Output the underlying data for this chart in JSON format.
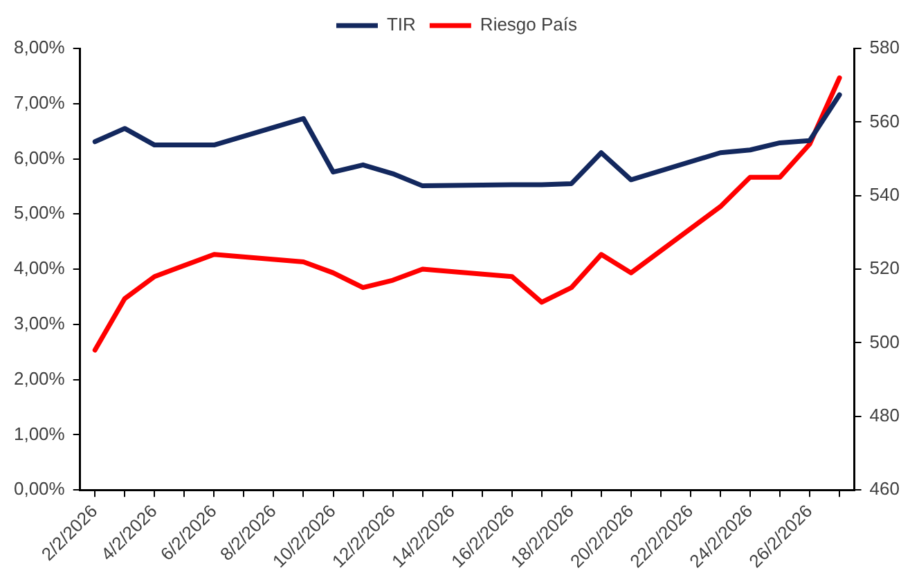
{
  "chart_data": {
    "type": "line",
    "x": [
      "2026-02-02",
      "2026-02-03",
      "2026-02-04",
      "2026-02-06",
      "2026-02-09",
      "2026-02-10",
      "2026-02-11",
      "2026-02-12",
      "2026-02-13",
      "2026-02-16",
      "2026-02-17",
      "2026-02-18",
      "2026-02-19",
      "2026-02-20",
      "2026-02-23",
      "2026-02-24",
      "2026-02-25",
      "2026-02-26",
      "2026-02-27"
    ],
    "series": [
      {
        "name": "TIR",
        "color": "#13285e",
        "values": [
          6.31,
          6.55,
          6.25,
          6.25,
          6.73,
          5.76,
          5.89,
          5.73,
          5.51,
          5.53,
          5.53,
          5.55,
          6.11,
          5.62,
          6.11,
          6.16,
          6.29,
          6.33,
          7.16
        ]
      },
      {
        "name": "Riesgo País",
        "color": "#ff0000",
        "axis": "y2",
        "values": [
          498,
          512,
          518,
          524,
          522,
          519,
          515,
          517,
          520,
          518,
          511,
          515,
          524,
          519,
          537,
          545,
          545,
          554,
          572
        ]
      }
    ],
    "xlim": [
      "2026-02-01T12:00",
      "2026-02-27T12:00"
    ],
    "xticks": [
      {
        "value": "2026-02-02",
        "label": "2/2/2026"
      },
      {
        "value": "2026-02-03",
        "label": null
      },
      {
        "value": "2026-02-04",
        "label": "4/2/2026"
      },
      {
        "value": "2026-02-05",
        "label": null
      },
      {
        "value": "2026-02-06",
        "label": "6/2/2026"
      },
      {
        "value": "2026-02-07",
        "label": null
      },
      {
        "value": "2026-02-08",
        "label": "8/2/2026"
      },
      {
        "value": "2026-02-09",
        "label": null
      },
      {
        "value": "2026-02-10",
        "label": "10/2/2026"
      },
      {
        "value": "2026-02-11",
        "label": null
      },
      {
        "value": "2026-02-12",
        "label": "12/2/2026"
      },
      {
        "value": "2026-02-13",
        "label": null
      },
      {
        "value": "2026-02-14",
        "label": "14/2/2026"
      },
      {
        "value": "2026-02-15",
        "label": null
      },
      {
        "value": "2026-02-16",
        "label": "16/2/2026"
      },
      {
        "value": "2026-02-17",
        "label": null
      },
      {
        "value": "2026-02-18",
        "label": "18/2/2026"
      },
      {
        "value": "2026-02-19",
        "label": null
      },
      {
        "value": "2026-02-20",
        "label": "20/2/2026"
      },
      {
        "value": "2026-02-21",
        "label": null
      },
      {
        "value": "2026-02-22",
        "label": "22/2/2026"
      },
      {
        "value": "2026-02-23",
        "label": null
      },
      {
        "value": "2026-02-24",
        "label": "24/2/2026"
      },
      {
        "value": "2026-02-25",
        "label": null
      },
      {
        "value": "2026-02-26",
        "label": "26/2/2026"
      },
      {
        "value": "2026-02-27",
        "label": null
      }
    ],
    "ylim": [
      0,
      8
    ],
    "yticks": [
      {
        "value": 0,
        "label": "0,00%"
      },
      {
        "value": 1,
        "label": "1,00%"
      },
      {
        "value": 2,
        "label": "2,00%"
      },
      {
        "value": 3,
        "label": "3,00%"
      },
      {
        "value": 4,
        "label": "4,00%"
      },
      {
        "value": 5,
        "label": "5,00%"
      },
      {
        "value": 6,
        "label": "6,00%"
      },
      {
        "value": 7,
        "label": "7,00%"
      },
      {
        "value": 8,
        "label": "8,00%"
      }
    ],
    "y2lim": [
      460,
      580
    ],
    "y2ticks": [
      460,
      480,
      500,
      520,
      540,
      560,
      580
    ],
    "grid": false,
    "legend": "top",
    "marker": "none",
    "line_style": "solid"
  }
}
